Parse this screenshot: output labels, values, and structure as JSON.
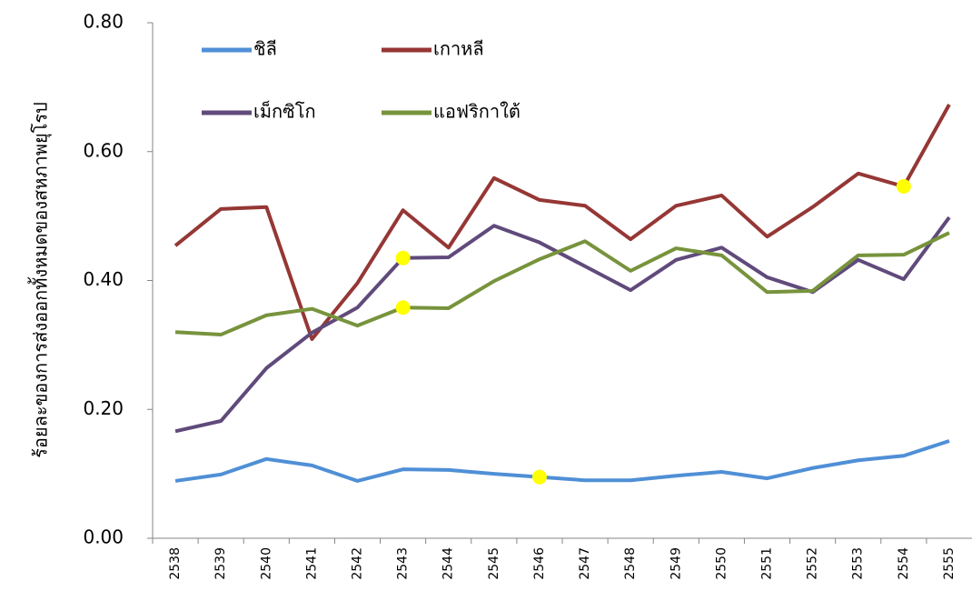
{
  "chart_data": {
    "type": "line",
    "y_label": "ร้อยละของการส่งออกทั้งหมดของสหภาพยุโรป",
    "categories": [
      "2538",
      "2539",
      "2540",
      "2541",
      "2542",
      "2543",
      "2544",
      "2545",
      "2546",
      "2547",
      "2548",
      "2549",
      "2550",
      "2551",
      "2552",
      "2553",
      "2554",
      "2555"
    ],
    "series": [
      {
        "name": "ชิลี",
        "color": "#4f8fd6",
        "values": [
          0.089,
          0.099,
          0.123,
          0.113,
          0.089,
          0.107,
          0.106,
          0.1,
          0.095,
          0.09,
          0.09,
          0.097,
          0.103,
          0.093,
          0.109,
          0.121,
          0.128,
          0.151
        ]
      },
      {
        "name": "เกาหลี",
        "color": "#953735",
        "values": [
          0.454,
          0.511,
          0.514,
          0.309,
          0.396,
          0.509,
          0.451,
          0.559,
          0.525,
          0.516,
          0.464,
          0.516,
          0.532,
          0.468,
          0.514,
          0.566,
          0.546,
          0.673
        ]
      },
      {
        "name": "เม็กซิโก",
        "color": "#604a7b",
        "values": [
          0.166,
          0.182,
          0.264,
          0.319,
          0.358,
          0.435,
          0.436,
          0.485,
          0.459,
          0.422,
          0.385,
          0.432,
          0.451,
          0.405,
          0.382,
          0.432,
          0.402,
          0.498
        ]
      },
      {
        "name": "แอฟริกาใต้",
        "color": "#77933c",
        "values": [
          0.32,
          0.316,
          0.346,
          0.356,
          0.33,
          0.358,
          0.357,
          0.399,
          0.433,
          0.461,
          0.415,
          0.45,
          0.439,
          0.382,
          0.384,
          0.439,
          0.44,
          0.474
        ]
      }
    ],
    "highlight_points": [
      {
        "series": "ชิลี",
        "category": "2546"
      },
      {
        "series": "เกาหลี",
        "category": "2554"
      },
      {
        "series": "เม็กซิโก",
        "category": "2543"
      },
      {
        "series": "แอฟริกาใต้",
        "category": "2543"
      }
    ],
    "highlight_color": "#ffff00",
    "ylim": [
      0,
      0.8
    ],
    "yticks": [
      {
        "value": 0,
        "label": "0.00"
      },
      {
        "value": 0.2,
        "label": "0.20"
      },
      {
        "value": 0.4,
        "label": "0.40"
      },
      {
        "value": 0.6,
        "label": "0.60"
      },
      {
        "value": 0.8,
        "label": "0.80"
      }
    ],
    "grid": false
  }
}
